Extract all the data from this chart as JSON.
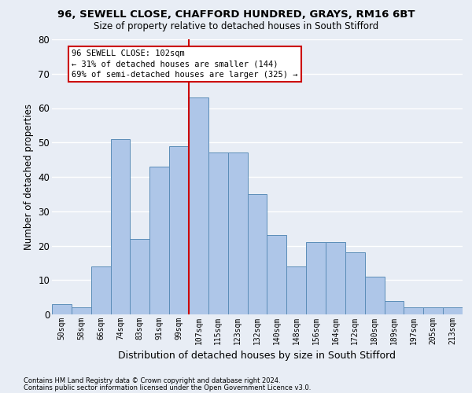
{
  "title1": "96, SEWELL CLOSE, CHAFFORD HUNDRED, GRAYS, RM16 6BT",
  "title2": "Size of property relative to detached houses in South Stifford",
  "xlabel": "Distribution of detached houses by size in South Stifford",
  "ylabel": "Number of detached properties",
  "footer1": "Contains HM Land Registry data © Crown copyright and database right 2024.",
  "footer2": "Contains public sector information licensed under the Open Government Licence v3.0.",
  "bar_labels": [
    "50sqm",
    "58sqm",
    "66sqm",
    "74sqm",
    "83sqm",
    "91sqm",
    "99sqm",
    "107sqm",
    "115sqm",
    "123sqm",
    "132sqm",
    "140sqm",
    "148sqm",
    "156sqm",
    "164sqm",
    "172sqm",
    "180sqm",
    "189sqm",
    "197sqm",
    "205sqm",
    "213sqm"
  ],
  "bar_heights": [
    3,
    2,
    14,
    51,
    22,
    43,
    49,
    63,
    47,
    47,
    35,
    23,
    14,
    21,
    21,
    18,
    11,
    4,
    2,
    2,
    2
  ],
  "bar_color": "#aec6e8",
  "bar_edge_color": "#5b8db8",
  "bg_color": "#e8edf5",
  "grid_color": "#ffffff",
  "vline_x": 7,
  "vline_color": "#cc0000",
  "annotation_text": "96 SEWELL CLOSE: 102sqm\n← 31% of detached houses are smaller (144)\n69% of semi-detached houses are larger (325) →",
  "annotation_box_color": "#ffffff",
  "annotation_box_edge": "#cc0000",
  "ylim": [
    0,
    80
  ],
  "yticks": [
    0,
    10,
    20,
    30,
    40,
    50,
    60,
    70,
    80
  ]
}
